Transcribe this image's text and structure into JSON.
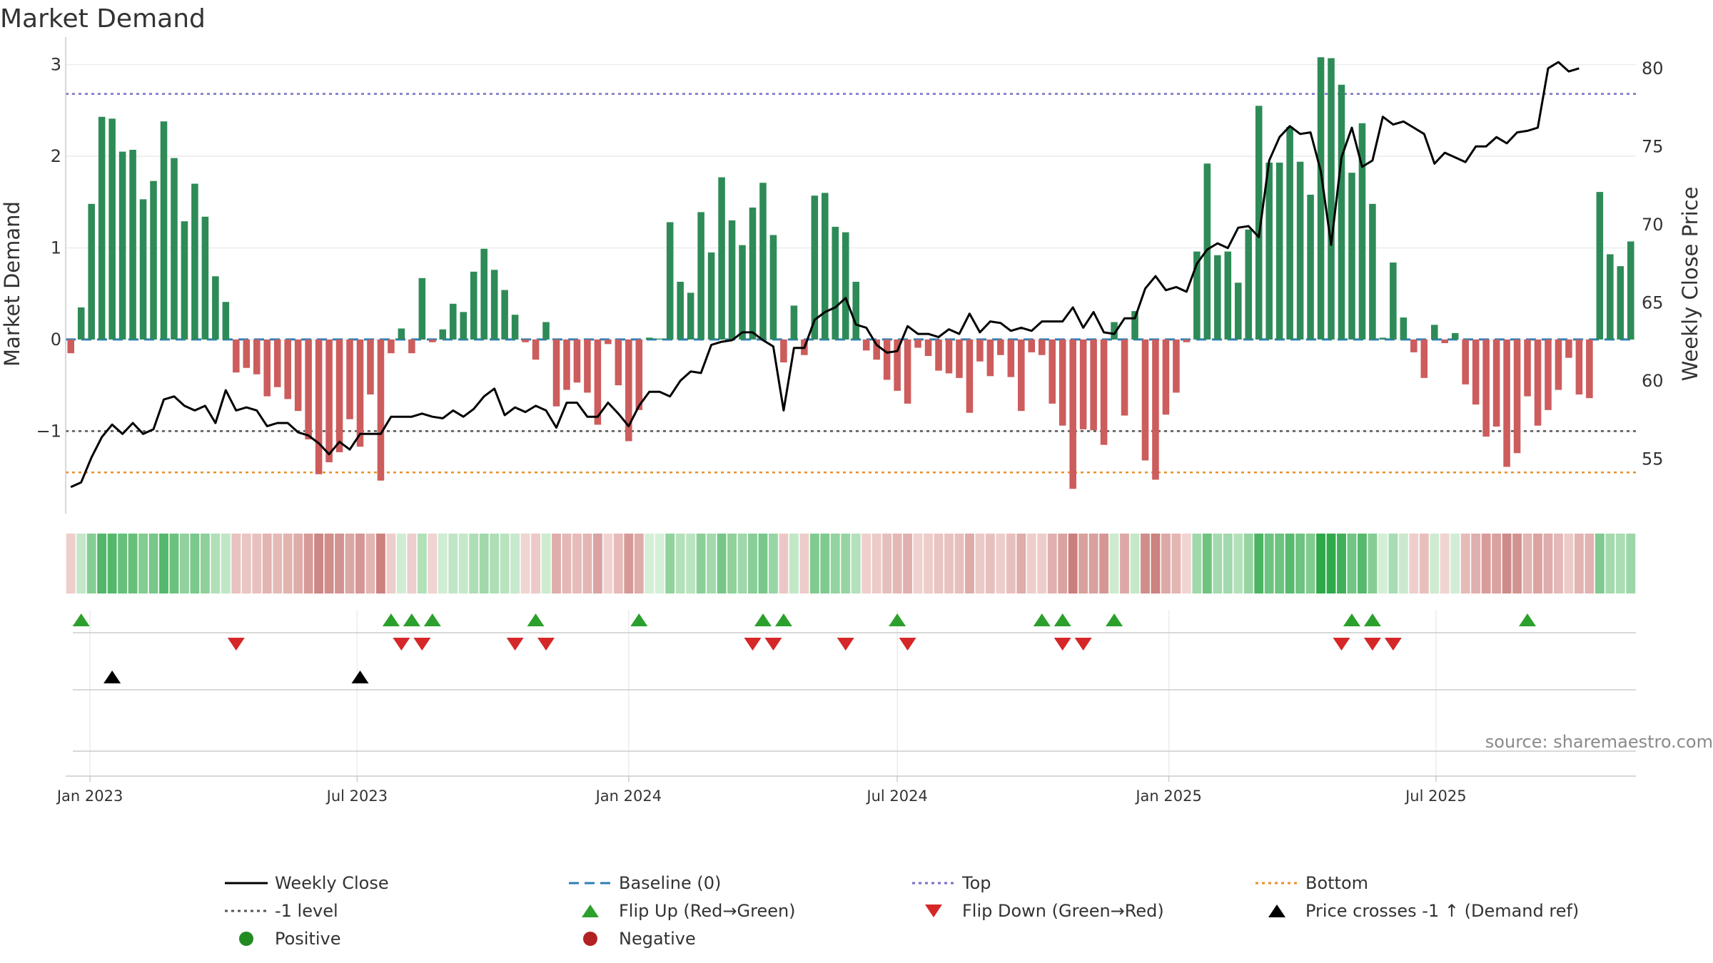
{
  "chart_data": {
    "type": "bar",
    "title": "Market Demand",
    "ylabel": "Market Demand",
    "y2label": "Weekly Close Price",
    "ylim": [
      -1.9,
      3.3
    ],
    "y2lim": [
      51.5,
      82.0
    ],
    "yticks": [
      3,
      2,
      1,
      0,
      -1
    ],
    "yticklabels": [
      "3",
      "2",
      "1",
      "0",
      "−1"
    ],
    "y2ticks": [
      80,
      75,
      70,
      65,
      60,
      55
    ],
    "y2ticklabels": [
      "80",
      "75",
      "70",
      "65",
      "60",
      "55"
    ],
    "start_date": "2022-12-19",
    "week_step": 1,
    "demand": [
      -0.15,
      0.35,
      1.48,
      2.43,
      2.41,
      2.05,
      2.07,
      1.53,
      1.73,
      2.38,
      1.98,
      1.29,
      1.7,
      1.34,
      0.69,
      0.41,
      -0.36,
      -0.31,
      -0.38,
      -0.62,
      -0.52,
      -0.65,
      -0.78,
      -1.09,
      -1.47,
      -1.34,
      -1.23,
      -0.87,
      -1.17,
      -0.6,
      -1.54,
      -0.15,
      0.12,
      -0.15,
      0.67,
      -0.03,
      0.11,
      0.39,
      0.3,
      0.74,
      0.99,
      0.76,
      0.54,
      0.27,
      -0.03,
      -0.22,
      0.19,
      -0.73,
      -0.55,
      -0.47,
      -0.58,
      -0.93,
      -0.05,
      -0.5,
      -1.11,
      -0.77,
      0.02,
      0.01,
      1.28,
      0.63,
      0.51,
      1.39,
      0.95,
      1.77,
      1.3,
      1.03,
      1.44,
      1.71,
      1.14,
      -0.25,
      0.37,
      -0.17,
      1.57,
      1.6,
      1.23,
      1.17,
      0.63,
      -0.12,
      -0.22,
      -0.44,
      -0.56,
      -0.7,
      -0.09,
      -0.18,
      -0.34,
      -0.37,
      -0.42,
      -0.8,
      -0.24,
      -0.4,
      -0.17,
      -0.41,
      -0.78,
      -0.14,
      -0.17,
      -0.7,
      -0.94,
      -1.63,
      -0.98,
      -0.99,
      -1.15,
      0.19,
      -0.83,
      0.31,
      -1.32,
      -1.53,
      -0.82,
      -0.58,
      -0.03,
      0.96,
      1.92,
      0.92,
      0.96,
      0.62,
      1.2,
      2.55,
      1.93,
      1.93,
      2.32,
      1.94,
      1.58,
      3.08,
      3.07,
      2.78,
      1.82,
      2.36,
      1.48,
      0.02,
      0.84,
      0.24,
      -0.14,
      -0.42,
      0.16,
      -0.04,
      0.07,
      -0.49,
      -0.71,
      -1.06,
      -0.95,
      -1.39,
      -1.24,
      -0.62,
      -0.94,
      -0.77,
      -0.55,
      -0.2,
      -0.6,
      -0.64,
      1.61,
      0.93,
      0.8,
      1.07
    ],
    "close": [
      53.2,
      53.5,
      55.1,
      56.4,
      57.2,
      56.6,
      57.3,
      56.6,
      56.9,
      58.8,
      59.0,
      58.4,
      58.1,
      58.4,
      57.3,
      59.4,
      58.1,
      58.3,
      58.1,
      57.1,
      57.3,
      57.3,
      56.7,
      56.5,
      56.0,
      55.3,
      56.1,
      55.6,
      56.6,
      56.6,
      56.6,
      57.7,
      57.7,
      57.7,
      57.9,
      57.7,
      57.6,
      58.1,
      57.7,
      58.2,
      59.0,
      59.5,
      57.8,
      58.3,
      58.0,
      58.4,
      58.1,
      57.0,
      58.6,
      58.6,
      57.7,
      57.7,
      58.6,
      57.9,
      57.1,
      58.4,
      59.3,
      59.3,
      59.0,
      60.0,
      60.6,
      60.5,
      62.3,
      62.5,
      62.6,
      63.1,
      63.1,
      62.6,
      62.2,
      58.1,
      62.1,
      62.1,
      63.9,
      64.4,
      64.7,
      65.3,
      63.6,
      63.4,
      62.3,
      61.8,
      61.9,
      63.5,
      63.0,
      63.0,
      62.8,
      63.3,
      63.0,
      64.3,
      63.1,
      63.8,
      63.7,
      63.2,
      63.4,
      63.2,
      63.8,
      63.8,
      63.8,
      64.7,
      63.4,
      64.4,
      63.1,
      63.0,
      64.0,
      64.0,
      65.9,
      66.7,
      65.8,
      66.0,
      65.7,
      67.5,
      68.4,
      68.8,
      68.5,
      69.8,
      69.9,
      69.2,
      74.1,
      75.6,
      76.3,
      75.8,
      75.9,
      73.4,
      68.7,
      74.3,
      76.2,
      73.7,
      74.1,
      76.9,
      76.4,
      76.6,
      76.2,
      75.8,
      73.9,
      74.6,
      74.3,
      74.0,
      75.0,
      75.0,
      75.6,
      75.2,
      75.9,
      76.0,
      76.2,
      80.0,
      80.4,
      79.8,
      80.0
    ],
    "reference_lines": [
      {
        "name": "Top",
        "value": 2.68,
        "color": "#7570c8",
        "style": "dotted"
      },
      {
        "name": "-1 level",
        "value": -1.0,
        "color": "#555555",
        "style": "dotted"
      },
      {
        "name": "Bottom",
        "value": -1.45,
        "color": "#e8902a",
        "style": "dotted"
      },
      {
        "name": "Baseline (0)",
        "value": 0,
        "color": "#2b7fb8",
        "style": "dashed"
      }
    ],
    "flip_up_weeks": [
      1,
      31,
      33,
      35,
      45,
      55,
      67,
      69,
      80,
      94,
      96,
      101,
      124,
      126,
      141
    ],
    "flip_down_weeks": [
      16,
      32,
      34,
      43,
      46,
      66,
      68,
      75,
      81,
      96,
      98,
      123,
      126,
      128
    ],
    "price_cross_weeks": [
      4,
      28
    ],
    "x_ticks": [
      "Jan 2023",
      "Jul 2023",
      "Jan 2024",
      "Jul 2024",
      "Jan 2025",
      "Jul 2025"
    ],
    "x_tick_dates": [
      "2023-01-01",
      "2023-07-01",
      "2024-01-01",
      "2024-07-01",
      "2025-01-01",
      "2025-07-01"
    ],
    "colors": {
      "positive": "#2e8b57",
      "negative": "#cd5c5c",
      "line": "#000000",
      "flip_up": "#2ca02c",
      "flip_down": "#d62728",
      "cross": "#000000"
    }
  },
  "source": "source: sharemaestro.com",
  "legend": [
    {
      "label": "Weekly Close",
      "kind": "solid-line",
      "color": "#000000"
    },
    {
      "label": "Baseline (0)",
      "kind": "dashed-line",
      "color": "#2b7fb8"
    },
    {
      "label": "Top",
      "kind": "dotted-line",
      "color": "#7570c8"
    },
    {
      "label": "Bottom",
      "kind": "dotted-line",
      "color": "#e8902a"
    },
    {
      "label": "-1 level",
      "kind": "dotted-line",
      "color": "#555555"
    },
    {
      "label": "Flip Up (Red→Green)",
      "kind": "triangle-up",
      "color": "#2ca02c"
    },
    {
      "label": "Flip Down (Green→Red)",
      "kind": "triangle-down",
      "color": "#d62728"
    },
    {
      "label": "Price crosses -1 ↑ (Demand ref)",
      "kind": "triangle-up",
      "color": "#000000"
    },
    {
      "label": "Positive",
      "kind": "circle",
      "color": "#228b22"
    },
    {
      "label": "Negative",
      "kind": "circle",
      "color": "#b22222"
    }
  ]
}
